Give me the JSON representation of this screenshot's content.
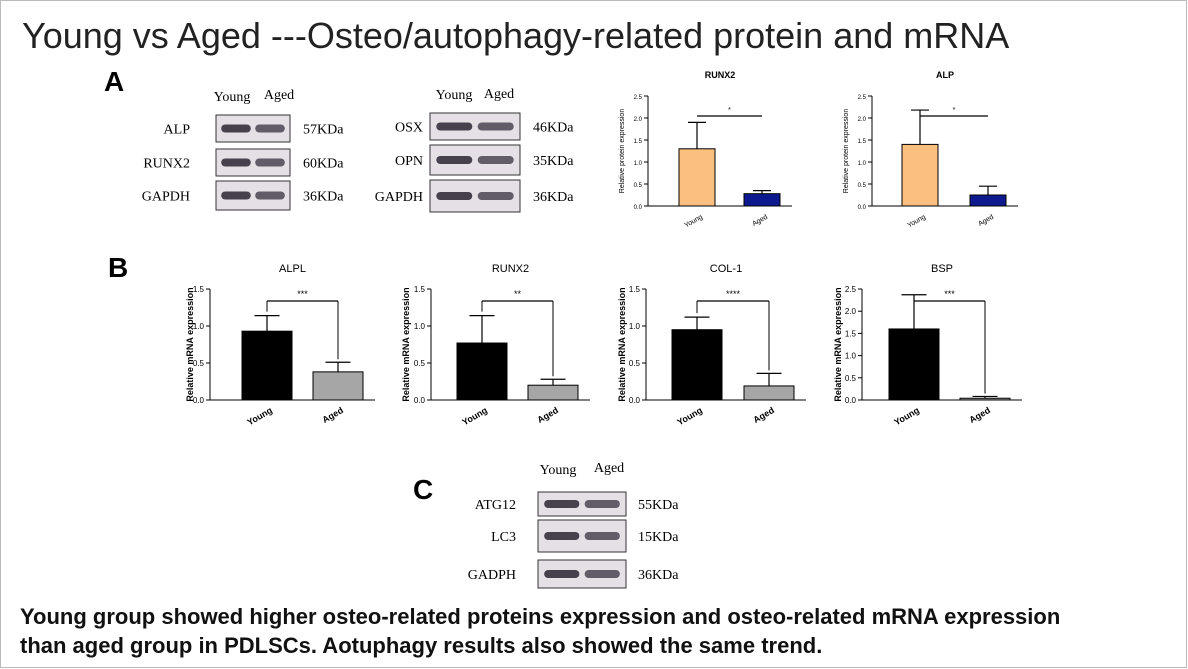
{
  "title": "Young vs Aged ---Osteo/autophagy-related protein and mRNA",
  "panels": [
    "A",
    "B",
    "C"
  ],
  "blots": [
    {
      "lanes": [
        "Young",
        "Aged"
      ],
      "rows": [
        {
          "protein": "ALP",
          "size": "57KDa"
        },
        {
          "protein": "RUNX2",
          "size": "60KDa"
        },
        {
          "protein": "GAPDH",
          "size": "36KDa"
        }
      ]
    },
    {
      "lanes": [
        "Young",
        "Aged"
      ],
      "rows": [
        {
          "protein": "OSX",
          "size": "46KDa"
        },
        {
          "protein": "OPN",
          "size": "35KDa"
        },
        {
          "protein": "GAPDH",
          "size": "36KDa"
        }
      ]
    },
    {
      "lanes": [
        "Young",
        "Aged"
      ],
      "rows": [
        {
          "protein": "ATG12",
          "size": "55KDa"
        },
        {
          "protein": "LC3",
          "size": "15KDa"
        },
        {
          "protein": "GADPH",
          "size": "36KDa"
        }
      ]
    }
  ],
  "chart_data": [
    {
      "type": "bar",
      "title": "RUNX2",
      "y_label": "Relative protein expression",
      "categories": [
        "Young",
        "Aged"
      ],
      "values": [
        1.3,
        0.28
      ],
      "errors": [
        0.6,
        0.07
      ],
      "colors": [
        "#fbbf7f",
        "#0d1a8f"
      ],
      "ylim": [
        0,
        2.5
      ],
      "yticks": [
        {
          "value": 0,
          "label": "0.0"
        },
        0.5,
        {
          "value": 1,
          "label": "1.0"
        },
        1.5,
        {
          "value": 2,
          "label": "2.0"
        },
        2.5
      ],
      "significance": "*"
    },
    {
      "type": "bar",
      "title": "ALP",
      "y_label": "Relative protein expression",
      "categories": [
        "Young",
        "Aged"
      ],
      "values": [
        1.4,
        0.25
      ],
      "errors": [
        0.78,
        0.2
      ],
      "colors": [
        "#fbbf7f",
        "#0d1a8f"
      ],
      "ylim": [
        0,
        2.5
      ],
      "yticks": [
        {
          "value": 0,
          "label": "0.0"
        },
        0.5,
        {
          "value": 1,
          "label": "1.0"
        },
        1.5,
        {
          "value": 2,
          "label": "2.0"
        },
        2.5
      ],
      "significance": "*"
    },
    {
      "type": "bar",
      "title": "ALPL",
      "y_label": "Relative mRNA expression",
      "categories": [
        "Young",
        "Aged"
      ],
      "values": [
        0.93,
        0.38
      ],
      "errors": [
        0.21,
        0.13
      ],
      "colors": [
        "#000000",
        "#a6a6a6"
      ],
      "ylim": [
        0,
        1.5
      ],
      "yticks": [
        {
          "value": 0,
          "label": "0.0"
        },
        0.5,
        {
          "value": 1,
          "label": "1.0"
        },
        1.5
      ],
      "significance": "***"
    },
    {
      "type": "bar",
      "title": "RUNX2",
      "y_label": "Relative mRNA expression",
      "categories": [
        "Young",
        "Aged"
      ],
      "values": [
        0.77,
        0.2
      ],
      "errors": [
        0.37,
        0.08
      ],
      "colors": [
        "#000000",
        "#a6a6a6"
      ],
      "ylim": [
        0,
        1.5
      ],
      "yticks": [
        {
          "value": 0,
          "label": "0.0"
        },
        0.5,
        {
          "value": 1,
          "label": "1.0"
        },
        1.5
      ],
      "significance": "**"
    },
    {
      "type": "bar",
      "title": "COL-1",
      "y_label": "Relative mRNA expression",
      "categories": [
        "Young",
        "Aged"
      ],
      "values": [
        0.95,
        0.19
      ],
      "errors": [
        0.17,
        0.17
      ],
      "colors": [
        "#000000",
        "#a6a6a6"
      ],
      "ylim": [
        0,
        1.5
      ],
      "yticks": [
        {
          "value": 0,
          "label": "0.0"
        },
        0.5,
        {
          "value": 1,
          "label": "1.0"
        },
        1.5
      ],
      "significance": "****"
    },
    {
      "type": "bar",
      "title": "BSP",
      "y_label": "Relative mRNA expression",
      "categories": [
        "Young",
        "Aged"
      ],
      "values": [
        1.6,
        0.04
      ],
      "errors": [
        0.77,
        0.04
      ],
      "colors": [
        "#000000",
        "#a6a6a6"
      ],
      "ylim": [
        0,
        2.5
      ],
      "yticks": [
        {
          "value": 0,
          "label": "0.0"
        },
        0.5,
        {
          "value": 1,
          "label": "1.0"
        },
        1.5,
        {
          "value": 2,
          "label": "2.0"
        },
        2.5
      ],
      "significance": "***"
    }
  ],
  "caption": [
    "Young group showed higher osteo-related proteins expression and osteo-related mRNA expression",
    "than aged group in PDLSCs. Aotuphagy results also showed the same trend."
  ]
}
